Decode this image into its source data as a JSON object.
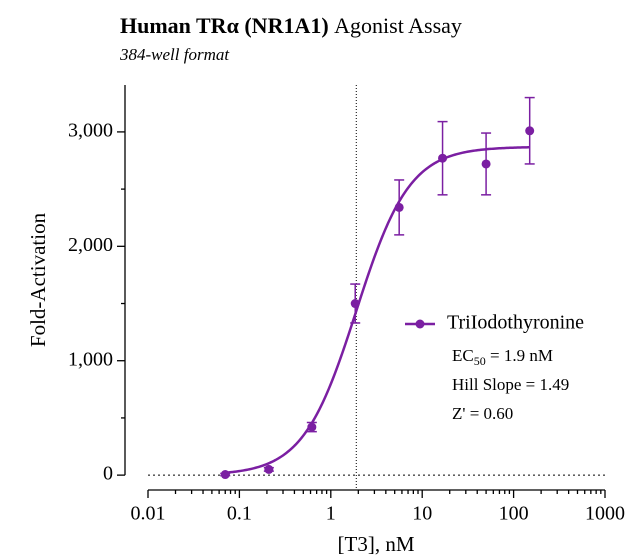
{
  "chart_data": {
    "type": "scatter",
    "title": {
      "bold": "Human TRα (NR1A1)",
      "normal": "Agonist Assay"
    },
    "subtitle": "384-well format",
    "x_label": "[T3], nM",
    "y_label": "Fold-Activation",
    "xscale": "log",
    "xlim": [
      0.01,
      1000
    ],
    "xticks": [
      0.01,
      0.1,
      1,
      10,
      100,
      1000
    ],
    "xminorticks": [
      0.02,
      0.03,
      0.04,
      0.05,
      0.06,
      0.07,
      0.08,
      0.09,
      0.2,
      0.3,
      0.4,
      0.5,
      0.6,
      0.7,
      0.8,
      0.9,
      2,
      3,
      4,
      5,
      6,
      7,
      8,
      9,
      20,
      30,
      40,
      50,
      60,
      70,
      80,
      90,
      200,
      300,
      400,
      500,
      600,
      700,
      800,
      900
    ],
    "ylim": [
      -130,
      3410
    ],
    "yticks": [
      0,
      {
        "value": 1000,
        "label": "1,000"
      },
      {
        "value": 2000,
        "label": "2,000"
      },
      {
        "value": 3000,
        "label": "3,000"
      }
    ],
    "yminorticks": [
      500,
      1500,
      2500
    ],
    "baseline": 0,
    "legend": "right",
    "series": [
      {
        "name": "TriIodothyronine",
        "color": "#7b1fa2",
        "x": [
          0.07,
          0.21,
          0.62,
          1.85,
          5.6,
          16.7,
          50,
          150
        ],
        "values": [
          5,
          50,
          420,
          1500,
          2340,
          2770,
          2720,
          3010
        ],
        "errors": [
          10,
          15,
          40,
          170,
          240,
          320,
          270,
          290
        ]
      }
    ],
    "fit": {
      "bottom": 0,
      "top": 2870,
      "ec50": 1.9,
      "hill": 1.49,
      "xrange": [
        0.07,
        150
      ]
    },
    "annotations": [
      {
        "text": "EC",
        "sub": "50",
        "after": " = 1.9 nM"
      },
      {
        "text": "Hill Slope = 1.49"
      },
      {
        "text": "Z' = 0.60"
      }
    ]
  }
}
